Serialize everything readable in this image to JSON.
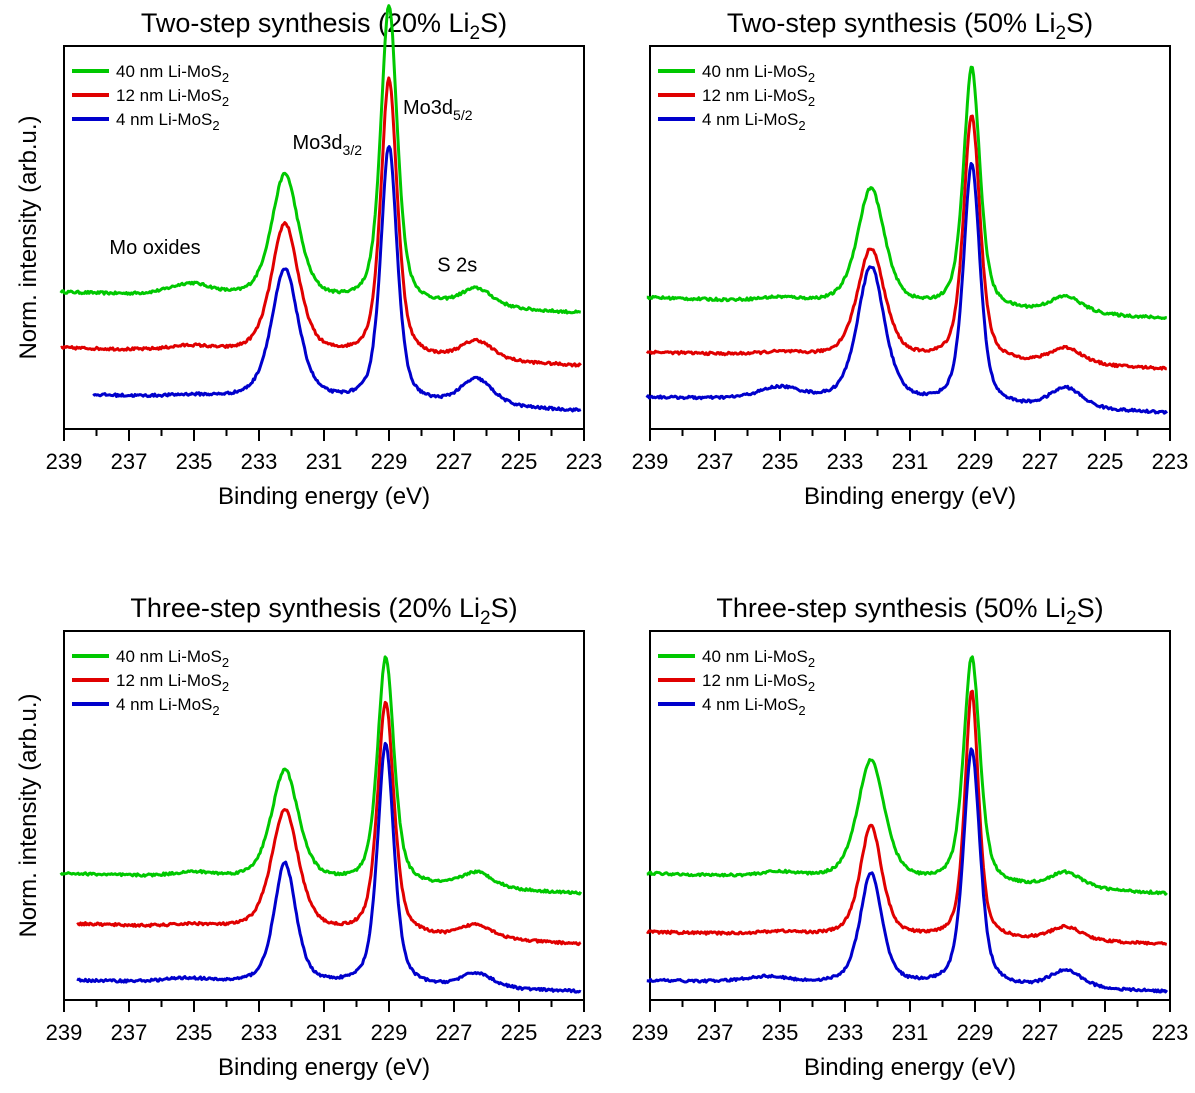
{
  "y_axis_label": "Norm. intensity (arb.u.)",
  "chart_data": [
    {
      "type": "line",
      "title": {
        "pre": "Two-step synthesis (20% Li",
        "sub": "2",
        "post": "S)"
      },
      "xlabel": "Binding energy (eV)",
      "xlim": [
        239,
        223
      ],
      "x_ticks": [
        "239",
        "237",
        "235",
        "233",
        "231",
        "229",
        "227",
        "225",
        "223"
      ],
      "ylim": [
        -0.05,
        3.6
      ],
      "y_ticks_shown": false,
      "legend_position": "top-left",
      "annotations": [
        {
          "pre": "Mo oxides",
          "sub": "",
          "x": 236.2,
          "y": 1.62
        },
        {
          "pre": "Mo3d",
          "sub": "3/2",
          "x": 230.9,
          "y": 2.62
        },
        {
          "pre": "Mo3d",
          "sub": "5/2",
          "x": 227.5,
          "y": 2.95
        },
        {
          "pre": "S 2s",
          "sub": "",
          "x": 226.9,
          "y": 1.45
        }
      ],
      "series": [
        {
          "name": "40 nm Li-MoS",
          "name_sub": "2",
          "color": "#00c800",
          "x_start": 239.1,
          "x_end": 223.1,
          "baseline": 1.25,
          "end": 1.05,
          "peaks": [
            [
              235.1,
              0.12,
              0.8
            ],
            [
              232.2,
              1.2,
              0.5
            ],
            [
              229.0,
              2.85,
              0.3
            ],
            [
              226.3,
              0.18,
              0.6
            ]
          ]
        },
        {
          "name": "12 nm Li-MoS",
          "name_sub": "2",
          "color": "#e00000",
          "x_start": 239.1,
          "x_end": 223.1,
          "baseline": 0.72,
          "end": 0.55,
          "peaks": [
            [
              235.1,
              0.05,
              0.8
            ],
            [
              232.2,
              1.25,
              0.5
            ],
            [
              229.0,
              2.65,
              0.3
            ],
            [
              226.3,
              0.19,
              0.6
            ]
          ]
        },
        {
          "name": "4 nm Li-MoS",
          "name_sub": "2",
          "color": "#0000cc",
          "x_start": 238.1,
          "x_end": 223.1,
          "baseline": 0.27,
          "end": 0.12,
          "peaks": [
            [
              235.1,
              0.02,
              0.8
            ],
            [
              232.2,
              1.25,
              0.5
            ],
            [
              229.0,
              2.45,
              0.3
            ],
            [
              226.3,
              0.26,
              0.6
            ]
          ]
        }
      ]
    },
    {
      "type": "line",
      "title": {
        "pre": "Two-step synthesis (50% Li",
        "sub": "2",
        "post": "S)"
      },
      "xlabel": "Binding energy (eV)",
      "xlim": [
        239,
        223
      ],
      "x_ticks": [
        "239",
        "237",
        "235",
        "233",
        "231",
        "229",
        "227",
        "225",
        "223"
      ],
      "ylim": [
        -0.05,
        3.6
      ],
      "y_ticks_shown": false,
      "legend_position": "top-left",
      "annotations": [],
      "series": [
        {
          "name": "40 nm Li-MoS",
          "name_sub": "2",
          "color": "#00c800",
          "x_start": 239.1,
          "x_end": 223.1,
          "baseline": 1.2,
          "end": 1.0,
          "peaks": [
            [
              235.0,
              0.04,
              0.8
            ],
            [
              232.2,
              1.12,
              0.5
            ],
            [
              229.1,
              2.3,
              0.3
            ],
            [
              226.2,
              0.16,
              0.6
            ]
          ]
        },
        {
          "name": "12 nm Li-MoS",
          "name_sub": "2",
          "color": "#e00000",
          "x_start": 239.1,
          "x_end": 223.1,
          "baseline": 0.68,
          "end": 0.52,
          "peaks": [
            [
              235.0,
              0.03,
              0.8
            ],
            [
              232.2,
              1.05,
              0.5
            ],
            [
              229.1,
              2.35,
              0.3
            ],
            [
              226.2,
              0.16,
              0.6
            ]
          ]
        },
        {
          "name": "4 nm Li-MoS",
          "name_sub": "2",
          "color": "#0000cc",
          "x_start": 239.1,
          "x_end": 223.1,
          "baseline": 0.25,
          "end": 0.1,
          "peaks": [
            [
              235.0,
              0.12,
              0.8
            ],
            [
              232.2,
              1.3,
              0.5
            ],
            [
              229.1,
              2.3,
              0.3
            ],
            [
              226.2,
              0.2,
              0.6
            ]
          ]
        }
      ]
    },
    {
      "type": "line",
      "title": {
        "pre": "Three-step synthesis (20% Li",
        "sub": "2",
        "post": "S)"
      },
      "xlabel": "Binding energy (eV)",
      "xlim": [
        239,
        223
      ],
      "x_ticks": [
        "239",
        "237",
        "235",
        "233",
        "231",
        "229",
        "227",
        "225",
        "223"
      ],
      "ylim": [
        -0.05,
        3.6
      ],
      "y_ticks_shown": false,
      "legend_position": "top-left",
      "annotations": [],
      "series": [
        {
          "name": "40 nm Li-MoS",
          "name_sub": "2",
          "color": "#00c800",
          "x_start": 239.1,
          "x_end": 223.1,
          "baseline": 1.2,
          "end": 1.0,
          "peaks": [
            [
              235.0,
              0.05,
              0.8
            ],
            [
              232.2,
              1.1,
              0.5
            ],
            [
              229.1,
              2.25,
              0.3
            ],
            [
              226.3,
              0.16,
              0.6
            ]
          ]
        },
        {
          "name": "12 nm Li-MoS",
          "name_sub": "2",
          "color": "#e00000",
          "x_start": 238.6,
          "x_end": 223.1,
          "baseline": 0.7,
          "end": 0.5,
          "peaks": [
            [
              235.0,
              0.03,
              0.8
            ],
            [
              232.2,
              1.2,
              0.5
            ],
            [
              229.1,
              2.3,
              0.3
            ],
            [
              226.3,
              0.14,
              0.6
            ]
          ]
        },
        {
          "name": "4 nm Li-MoS",
          "name_sub": "2",
          "color": "#0000cc",
          "x_start": 238.6,
          "x_end": 223.1,
          "baseline": 0.14,
          "end": 0.03,
          "peaks": [
            [
              235.2,
              0.04,
              0.8
            ],
            [
              232.2,
              1.2,
              0.4
            ],
            [
              229.1,
              2.4,
              0.3
            ],
            [
              226.3,
              0.15,
              0.6
            ]
          ]
        }
      ]
    },
    {
      "type": "line",
      "title": {
        "pre": "Three-step synthesis (50% Li",
        "sub": "2",
        "post": "S)"
      },
      "xlabel": "Binding energy (eV)",
      "xlim": [
        239,
        223
      ],
      "x_ticks": [
        "239",
        "237",
        "235",
        "233",
        "231",
        "229",
        "227",
        "225",
        "223"
      ],
      "ylim": [
        -0.05,
        3.6
      ],
      "y_ticks_shown": false,
      "legend_position": "top-left",
      "annotations": [],
      "series": [
        {
          "name": "40 nm Li-MoS",
          "name_sub": "2",
          "color": "#00c800",
          "x_start": 239.1,
          "x_end": 223.1,
          "baseline": 1.2,
          "end": 1.0,
          "peaks": [
            [
              235.0,
              0.05,
              0.8
            ],
            [
              232.2,
              1.2,
              0.5
            ],
            [
              229.1,
              2.25,
              0.3
            ],
            [
              226.2,
              0.16,
              0.6
            ]
          ]
        },
        {
          "name": "12 nm Li-MoS",
          "name_sub": "2",
          "color": "#e00000",
          "x_start": 239.1,
          "x_end": 223.1,
          "baseline": 0.62,
          "end": 0.5,
          "peaks": [
            [
              235.0,
              0.03,
              0.8
            ],
            [
              232.2,
              1.1,
              0.4
            ],
            [
              229.1,
              2.45,
              0.25
            ],
            [
              226.2,
              0.14,
              0.6
            ]
          ]
        },
        {
          "name": "4 nm Li-MoS",
          "name_sub": "2",
          "color": "#0000cc",
          "x_start": 239.1,
          "x_end": 223.1,
          "baseline": 0.14,
          "end": 0.03,
          "peaks": [
            [
              235.4,
              0.06,
              0.8
            ],
            [
              232.2,
              1.1,
              0.4
            ],
            [
              229.1,
              2.35,
              0.3
            ],
            [
              226.2,
              0.18,
              0.6
            ]
          ]
        }
      ]
    }
  ]
}
